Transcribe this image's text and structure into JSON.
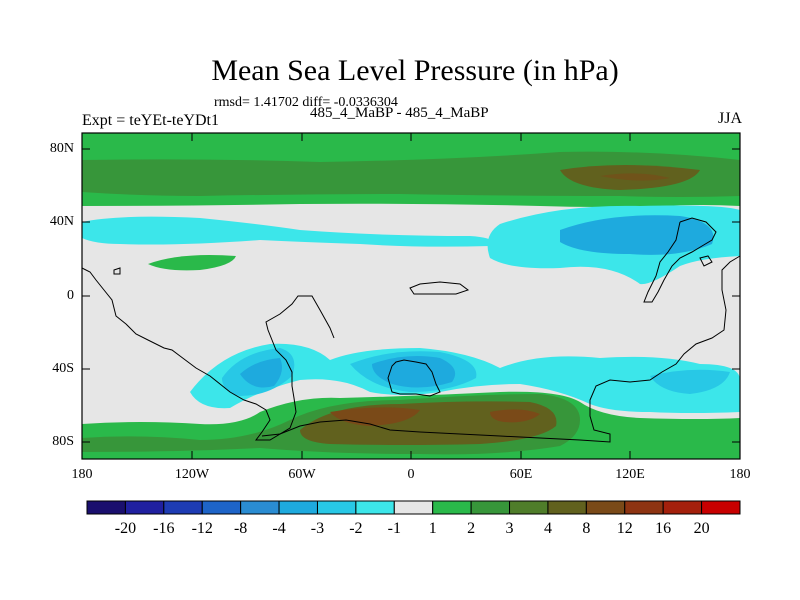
{
  "title": "Mean Sea Level Pressure (in hPa)",
  "stats": "rmsd= 1.41702 diff= -0.0336304",
  "experiment": "Expt = teYEt-teYDt1",
  "subtitle": "485_4_MaBP - 485_4_MaBP",
  "season": "JJA",
  "lat_labels": [
    "80N",
    "40N",
    "0",
    "40S",
    "80S"
  ],
  "lon_labels": [
    "180",
    "120W",
    "60W",
    "0",
    "60E",
    "120E",
    "180"
  ],
  "colorbar": {
    "labels": [
      "-20",
      "-16",
      "-12",
      "-8",
      "-4",
      "-3",
      "-2",
      "-1",
      "1",
      "2",
      "3",
      "4",
      "8",
      "12",
      "16",
      "20"
    ],
    "colors": [
      "#1a0f6e",
      "#2020a0",
      "#1e3cb4",
      "#1e64c8",
      "#2a8cd2",
      "#1eaade",
      "#28c8e6",
      "#3ce6ea",
      "#e6e6e6",
      "#2ab94a",
      "#37963a",
      "#4f7d2a",
      "#61611e",
      "#7a4a18",
      "#8e3412",
      "#a4200c",
      "#c80000"
    ]
  },
  "colors": {
    "land_outline": "#000000",
    "neutral": "#e6e6e6",
    "positive_low": "#2ab94a",
    "positive_mid": "#37963a",
    "positive_high": "#61611e",
    "negative_low": "#3ce6ea",
    "negative_mid": "#28c8e6",
    "negative_high": "#1eaade"
  }
}
